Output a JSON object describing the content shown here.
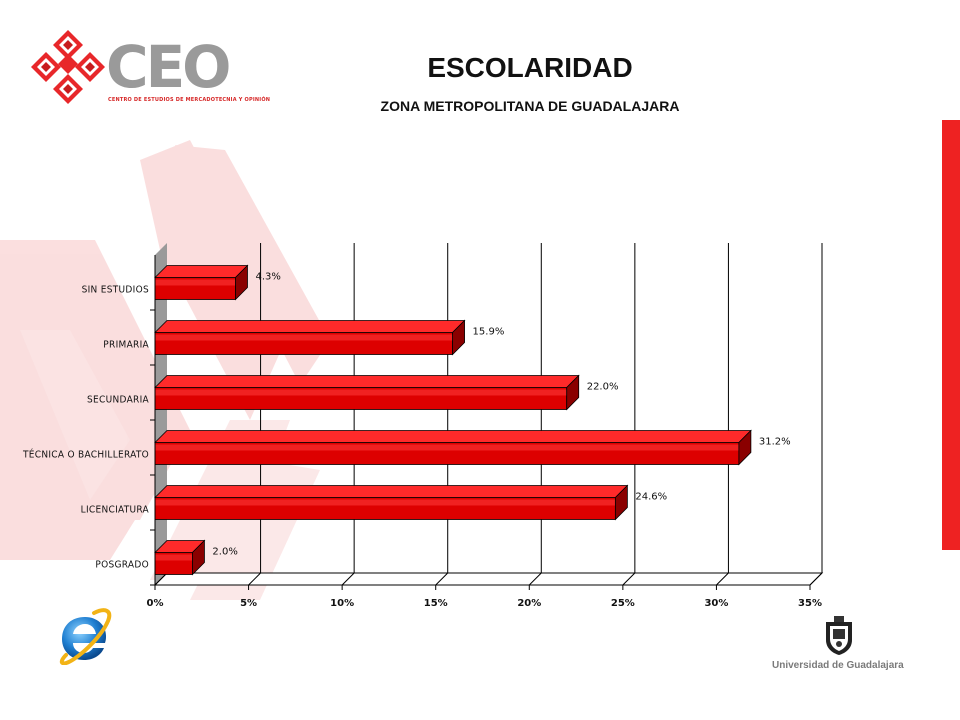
{
  "logo": {
    "brand": "CEO",
    "tagline": "CENTRO DE ESTUDIOS DE MERCADOTECNIA Y OPINIÓN"
  },
  "footer": {
    "university": "Universidad de Guadalajara",
    "left_icon": "internet-explorer-icon",
    "right_icon": "university-crest-icon"
  },
  "colors": {
    "bar": "#dd0000",
    "bar_top": "#ff2a2a",
    "bar_side": "#8a0000",
    "accent_bar": "#ee2222",
    "decoration": "#f7c8c8"
  },
  "chart_data": {
    "type": "bar",
    "orientation": "horizontal",
    "title": "ESCOLARIDAD",
    "subtitle": "ZONA METROPOLITANA DE GUADALAJARA",
    "categories": [
      "SIN ESTUDIOS",
      "PRIMARIA",
      "SECUNDARIA",
      "TÉCNICA O BACHILLERATO",
      "LICENCIATURA",
      "POSGRADO"
    ],
    "values": [
      4.3,
      15.9,
      22.0,
      31.2,
      24.6,
      2.0
    ],
    "data_labels": [
      "4.3%",
      "15.9%",
      "22.0%",
      "31.2%",
      "24.6%",
      "2.0%"
    ],
    "xlim": [
      0,
      35
    ],
    "x_ticks": [
      "0%",
      "5%",
      "10%",
      "15%",
      "20%",
      "25%",
      "30%",
      "35%"
    ],
    "xlabel": "",
    "ylabel": "",
    "grid": true,
    "legend": "none"
  }
}
